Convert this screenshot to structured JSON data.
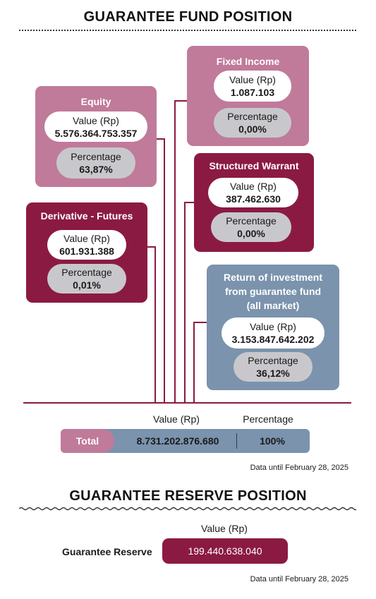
{
  "fund": {
    "title": "GUARANTEE FUND POSITION",
    "value_label": "Value (Rp)",
    "percentage_label": "Percentage",
    "cards": {
      "fixed_income": {
        "title": "Fixed Income",
        "value": "1.087.103",
        "percentage": "0,00%"
      },
      "equity": {
        "title": "Equity",
        "value": "5.576.364.753.357",
        "percentage": "63,87%"
      },
      "structured_warrant": {
        "title": "Structured Warrant",
        "value": "387.462.630",
        "percentage": "0,00%"
      },
      "derivative_futures": {
        "title": "Derivative - Futures",
        "value": "601.931.388",
        "percentage": "0,01%"
      },
      "return_investment": {
        "title_lines": [
          "Return of investment",
          "from guarantee fund",
          "(all market)"
        ],
        "value": "3.153.847.642.202",
        "percentage": "36,12%"
      }
    },
    "total": {
      "label": "Total",
      "value": "8.731.202.876.680",
      "percentage": "100%"
    },
    "date_note": "Data until February 28, 2025"
  },
  "reserve": {
    "title": "GUARANTEE RESERVE POSITION",
    "value_label": "Value (Rp)",
    "label": "Guarantee Reserve",
    "value": "199.440.638.040",
    "date_note": "Data until February 28, 2025"
  },
  "colors": {
    "light_mauve": "#c07a9a",
    "dark_maroon": "#8b1a43",
    "steel_blue": "#7b93ad",
    "pill_grey": "#c8c8cc",
    "connector": "#8b1a43"
  }
}
